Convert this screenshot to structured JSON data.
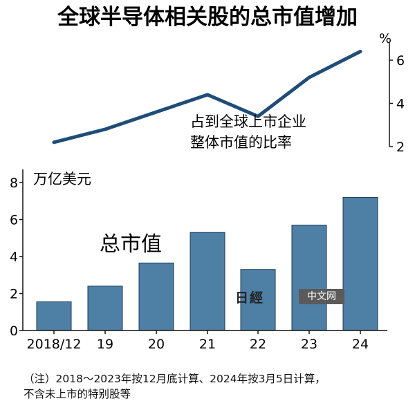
{
  "title": "全球半导体相关股的总市值增加",
  "chart_data": [
    {
      "type": "line",
      "x": [
        "2018/12",
        "19",
        "20",
        "21",
        "22",
        "23",
        "24"
      ],
      "values": [
        2.2,
        2.8,
        3.6,
        4.4,
        3.4,
        5.2,
        6.4
      ],
      "unit": "%",
      "annotation": [
        "占到全球上市企业",
        "整体市值的比率"
      ],
      "yticks": [
        2,
        4,
        6
      ],
      "ylim": [
        2,
        6.8
      ],
      "color": "#1f4d78"
    },
    {
      "type": "bar",
      "categories": [
        "2018/12",
        "19",
        "20",
        "21",
        "22",
        "23",
        "24"
      ],
      "values": [
        1.55,
        2.4,
        3.65,
        5.3,
        3.3,
        5.7,
        7.2
      ],
      "ylabel": "万亿美元",
      "annotation": "总市值",
      "yticks": [
        0,
        2,
        4,
        6,
        8
      ],
      "ylim": [
        0,
        8
      ],
      "color": "#4e7fa5"
    }
  ],
  "note": {
    "line1": "（注）2018～2023年按12月底计算、2024年按3月5日计算，",
    "line2": "不含未上市的特别股等"
  },
  "watermark": {
    "logo": "日經",
    "text": "中文网"
  }
}
